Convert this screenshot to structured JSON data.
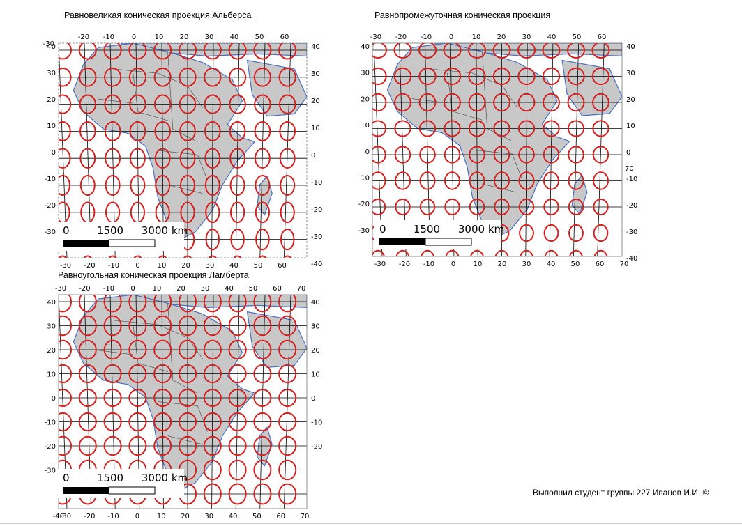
{
  "maps": [
    {
      "id": "albers",
      "title": "Равновеликая коническая проекция Альберса",
      "top_labels": [
        "-20",
        "-10",
        "0",
        "10",
        "20",
        "30",
        "40",
        "50",
        "60"
      ],
      "bottom_labels": [
        "-30",
        "-20",
        "-10",
        "0",
        "10",
        "20",
        "30",
        "40",
        "50",
        "60"
      ],
      "left_labels": [
        "40",
        "30",
        "20",
        "10",
        "0",
        "-10",
        "-20",
        "-30"
      ],
      "right_labels": [
        "40",
        "30",
        "20",
        "10",
        "0",
        "-10",
        "-20",
        "-30",
        "-40"
      ],
      "extra_label": "-30",
      "scale": {
        "labels": [
          "0",
          "1500",
          "3000 km"
        ]
      }
    },
    {
      "id": "equidistant",
      "title": "Равнопромежуточная коническая проекция",
      "top_labels": [
        "-30",
        "-20",
        "-10",
        "0",
        "10",
        "20",
        "30",
        "40",
        "50",
        "60"
      ],
      "bottom_labels": [
        "-30",
        "-20",
        "-10",
        "0",
        "10",
        "20",
        "30",
        "40",
        "50",
        "60",
        "70"
      ],
      "left_labels": [
        "40",
        "30",
        "20",
        "10",
        "0",
        "-10",
        "-20",
        "-30"
      ],
      "right_labels": [
        "40",
        "30",
        "20",
        "10",
        "0",
        "-10",
        "-20",
        "-30",
        "-40"
      ],
      "extra_label": "70",
      "scale": {
        "labels": [
          "0",
          "1500",
          "3000 km"
        ]
      }
    },
    {
      "id": "lambert",
      "title": "Равноугольная коническая проекция Ламберта",
      "top_labels": [
        "-30",
        "-20",
        "-10",
        "0",
        "10",
        "20",
        "30",
        "40",
        "50",
        "60",
        "70"
      ],
      "bottom_labels": [
        "-30",
        "-20",
        "-10",
        "0",
        "10",
        "20",
        "30",
        "40",
        "50",
        "60",
        "70"
      ],
      "left_labels": [
        "40",
        "30",
        "20",
        "10",
        "0",
        "-10",
        "-20",
        "-30"
      ],
      "right_labels": [
        "40",
        "30",
        "20",
        "10",
        "0",
        "-10",
        "-20"
      ],
      "extra_label": "-40",
      "scale": {
        "labels": [
          "0",
          "1500",
          "3000 km"
        ]
      }
    }
  ],
  "footer": {
    "credit": "Выполнил студент группы 227 Иванов И.И. ©"
  },
  "colors": {
    "land": "#c8c8c8",
    "coast": "#4a6fc0",
    "border": "#555555",
    "ellipse": "#d62020",
    "grid": "#000000"
  }
}
